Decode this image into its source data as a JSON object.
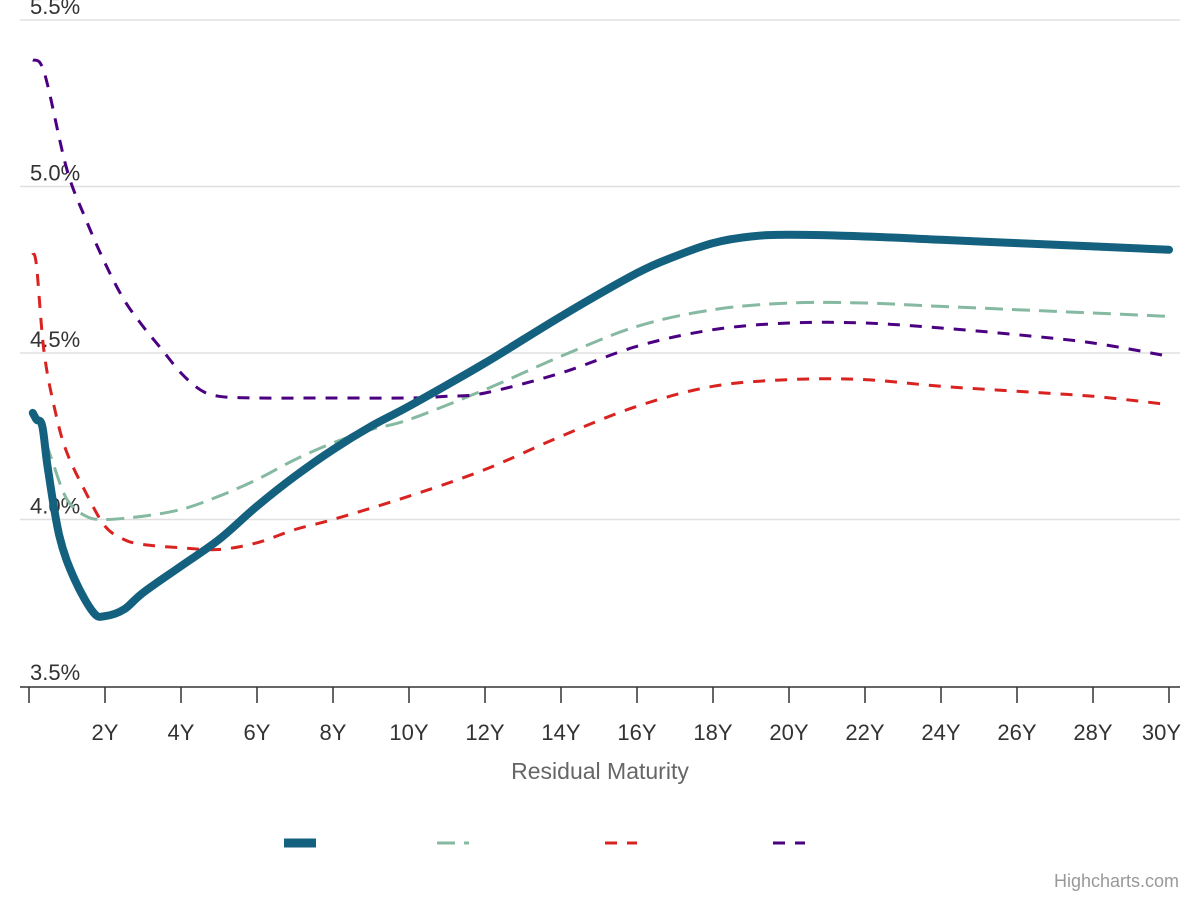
{
  "chart_data": {
    "type": "line",
    "title": "",
    "xlabel": "Residual Maturity",
    "ylabel": "",
    "x_unit": "years",
    "xlim": [
      0,
      30
    ],
    "ylim": [
      3.5,
      5.5
    ],
    "y_ticks": [
      "3.5%",
      "4.0%",
      "4.5%",
      "5.0%",
      "5.5%"
    ],
    "y_tick_values": [
      3.5,
      4.0,
      4.5,
      5.0,
      5.5
    ],
    "x_ticks": [
      "2Y",
      "4Y",
      "6Y",
      "8Y",
      "10Y",
      "12Y",
      "14Y",
      "16Y",
      "18Y",
      "20Y",
      "22Y",
      "24Y",
      "26Y",
      "28Y",
      "30Y"
    ],
    "x_tick_values": [
      2,
      4,
      6,
      8,
      10,
      12,
      14,
      16,
      18,
      20,
      22,
      24,
      26,
      28,
      30
    ],
    "grid": true,
    "legend_position": "bottom-center",
    "series": [
      {
        "color": "#14617f",
        "dash": "solid",
        "x": [
          0.1,
          0.2,
          0.35,
          0.5,
          0.8,
          1.2,
          1.7,
          2.0,
          2.5,
          3,
          4,
          5,
          6,
          7,
          8,
          9,
          10,
          12,
          14,
          16,
          17,
          18,
          19,
          20,
          22,
          24,
          26,
          28,
          30
        ],
        "y": [
          4.32,
          4.3,
          4.28,
          4.15,
          3.95,
          3.82,
          3.72,
          3.71,
          3.73,
          3.78,
          3.86,
          3.94,
          4.04,
          4.13,
          4.21,
          4.28,
          4.34,
          4.47,
          4.61,
          4.74,
          4.79,
          4.83,
          4.85,
          4.855,
          4.85,
          4.84,
          4.83,
          4.82,
          4.81
        ]
      },
      {
        "color": "#86b9a1",
        "dash": "long-dash",
        "x": [
          0.1,
          0.3,
          0.6,
          1.0,
          1.5,
          2.0,
          3,
          4,
          5,
          6,
          7,
          8,
          9,
          10,
          12,
          14,
          16,
          18,
          20,
          22,
          24,
          26,
          28,
          30
        ],
        "y": [
          4.3,
          4.28,
          4.18,
          4.06,
          4.01,
          4.0,
          4.01,
          4.03,
          4.07,
          4.12,
          4.18,
          4.23,
          4.27,
          4.3,
          4.39,
          4.49,
          4.58,
          4.63,
          4.65,
          4.65,
          4.64,
          4.63,
          4.62,
          4.61
        ]
      },
      {
        "color": "#d82320",
        "dash": "dash",
        "x": [
          0.1,
          0.2,
          0.4,
          0.7,
          1.0,
          1.5,
          2.0,
          2.5,
          3,
          4,
          5,
          6,
          7,
          8,
          10,
          12,
          14,
          16,
          18,
          20,
          22,
          24,
          26,
          28,
          30
        ],
        "y": [
          4.8,
          4.76,
          4.5,
          4.32,
          4.2,
          4.08,
          3.98,
          3.94,
          3.925,
          3.915,
          3.91,
          3.93,
          3.97,
          4.0,
          4.07,
          4.15,
          4.25,
          4.34,
          4.4,
          4.42,
          4.42,
          4.4,
          4.385,
          4.37,
          4.345
        ]
      },
      {
        "color": "#4b0082",
        "dash": "dash",
        "x": [
          0.1,
          0.3,
          0.5,
          1.0,
          1.5,
          2.0,
          2.5,
          3,
          3.5,
          4,
          4.5,
          5,
          6,
          8,
          10,
          11,
          12,
          14,
          16,
          18,
          20,
          22,
          24,
          26,
          28,
          30
        ],
        "y": [
          5.38,
          5.37,
          5.3,
          5.05,
          4.9,
          4.77,
          4.66,
          4.58,
          4.51,
          4.44,
          4.39,
          4.37,
          4.365,
          4.365,
          4.365,
          4.37,
          4.38,
          4.44,
          4.52,
          4.57,
          4.59,
          4.59,
          4.575,
          4.555,
          4.53,
          4.49
        ]
      }
    ]
  },
  "credits": "Highcharts.com"
}
